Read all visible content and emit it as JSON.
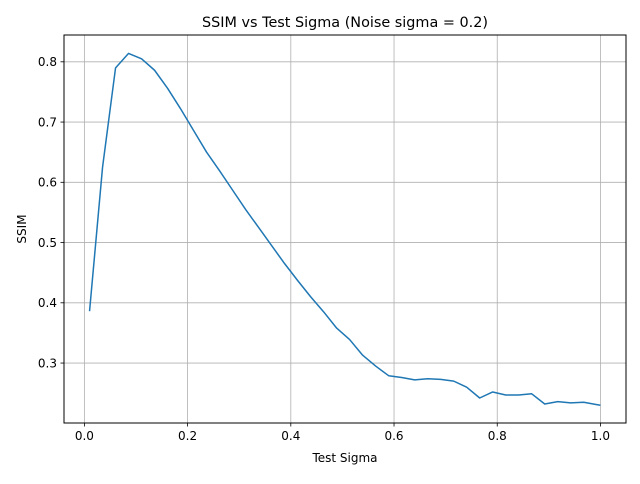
{
  "chart_data": {
    "type": "line",
    "title": "SSIM vs Test Sigma (Noise sigma = 0.2)",
    "xlabel": "Test Sigma",
    "ylabel": "SSIM",
    "xlim": [
      -0.0395,
      1.0495
    ],
    "ylim": [
      0.2005,
      0.8445
    ],
    "xticks": [
      0.0,
      0.2,
      0.4,
      0.6,
      0.8,
      1.0
    ],
    "xtick_labels": [
      "0.0",
      "0.2",
      "0.4",
      "0.6",
      "0.8",
      "1.0"
    ],
    "yticks": [
      0.3,
      0.4,
      0.5,
      0.6,
      0.7,
      0.8
    ],
    "ytick_labels": [
      "0.3",
      "0.4",
      "0.5",
      "0.6",
      "0.7",
      "0.8"
    ],
    "grid": true,
    "series": [
      {
        "color": "#1f77b4",
        "x": [
          0.01,
          0.0352,
          0.0604,
          0.0856,
          0.1108,
          0.136,
          0.1612,
          0.1864,
          0.2116,
          0.2368,
          0.262,
          0.2872,
          0.3124,
          0.3376,
          0.3628,
          0.388,
          0.4132,
          0.4384,
          0.4636,
          0.4888,
          0.514,
          0.5392,
          0.5644,
          0.5896,
          0.6148,
          0.64,
          0.6652,
          0.6904,
          0.7156,
          0.7408,
          0.766,
          0.7912,
          0.8164,
          0.8416,
          0.8668,
          0.892,
          0.9172,
          0.9424,
          0.9676,
          0.9928,
          1.0
        ],
        "y": [
          0.386,
          0.625,
          0.79,
          0.814,
          0.805,
          0.786,
          0.756,
          0.722,
          0.686,
          0.65,
          0.619,
          0.587,
          0.555,
          0.525,
          0.495,
          0.465,
          0.437,
          0.41,
          0.385,
          0.358,
          0.339,
          0.313,
          0.295,
          0.279,
          0.276,
          0.272,
          0.274,
          0.273,
          0.27,
          0.26,
          0.242,
          0.252,
          0.247,
          0.247,
          0.249,
          0.232,
          0.236,
          0.234,
          0.235,
          0.231,
          0.23
        ]
      }
    ]
  }
}
